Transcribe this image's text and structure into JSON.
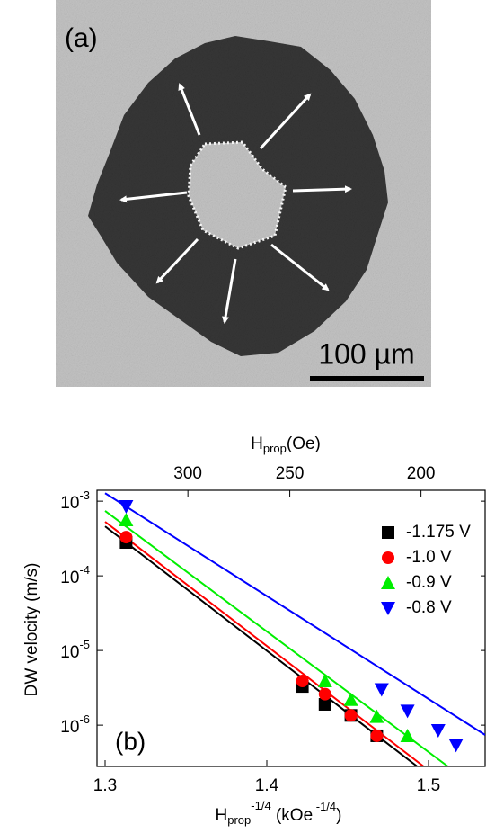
{
  "image": {
    "panel_label": "(a)",
    "scale_bar": "100 µm"
  },
  "chart_data": {
    "type": "scatter",
    "panel_label": "(b)",
    "log_y": true,
    "ylabel": "DW velocity (m/s)",
    "xlabel": {
      "base": "H",
      "sub": "prop",
      "sup": "-1/4",
      "unit": " (kOe",
      "unit_sup": " -1/4",
      "close": ")"
    },
    "x2label": {
      "base": "H",
      "sub": "prop",
      "unit": "(Oe)"
    },
    "xlim": [
      1.295,
      1.535
    ],
    "xticks": [
      1.3,
      1.4,
      1.5
    ],
    "x2ticks": [
      300,
      250,
      200
    ],
    "ylim": [
      2.8e-07,
      0.0014
    ],
    "yticks": [
      {
        "value": 0.001,
        "label": [
          "10",
          "-3"
        ]
      },
      {
        "value": 0.0001,
        "label": [
          "10",
          "-4"
        ]
      },
      {
        "value": 1e-05,
        "label": [
          "10",
          "-5"
        ]
      },
      {
        "value": 1e-06,
        "label": [
          "10",
          "-6"
        ]
      }
    ],
    "series": [
      {
        "name": "-1.175 V",
        "color": "#000000",
        "marker": "square",
        "x": [
          1.313,
          1.422,
          1.436,
          1.452,
          1.468
        ],
        "values": [
          0.00028,
          3.3e-06,
          1.9e-06,
          1.35e-06,
          7.2e-07
        ],
        "fit": {
          "x": [
            1.3,
            1.493
          ],
          "values": [
            0.00046,
            2.8e-07
          ]
        }
      },
      {
        "name": "-1.0 V",
        "color": "#ff0000",
        "marker": "circle",
        "x": [
          1.313,
          1.422,
          1.436,
          1.452,
          1.468
        ],
        "values": [
          0.00033,
          3.9e-06,
          2.6e-06,
          1.35e-06,
          7.2e-07
        ],
        "fit": {
          "x": [
            1.3,
            1.497
          ],
          "values": [
            0.00053,
            2.8e-07
          ]
        }
      },
      {
        "name": "-0.9 V",
        "color": "#00ee00",
        "marker": "triangle-up",
        "x": [
          1.313,
          1.436,
          1.452,
          1.468,
          1.487
        ],
        "values": [
          0.00056,
          3.9e-06,
          2.2e-06,
          1.3e-06,
          7.2e-07
        ],
        "fit": {
          "x": [
            1.3,
            1.512
          ],
          "values": [
            0.00074,
            2.8e-07
          ]
        }
      },
      {
        "name": "-0.8 V",
        "color": "#0000ff",
        "marker": "triangle-down",
        "x": [
          1.313,
          1.471,
          1.487,
          1.506,
          1.517
        ],
        "values": [
          0.00085,
          3e-06,
          1.55e-06,
          8.5e-07,
          5.4e-07
        ],
        "fit": {
          "x": [
            1.3,
            1.535
          ],
          "values": [
            0.00128,
            7.4e-07
          ]
        }
      }
    ]
  }
}
